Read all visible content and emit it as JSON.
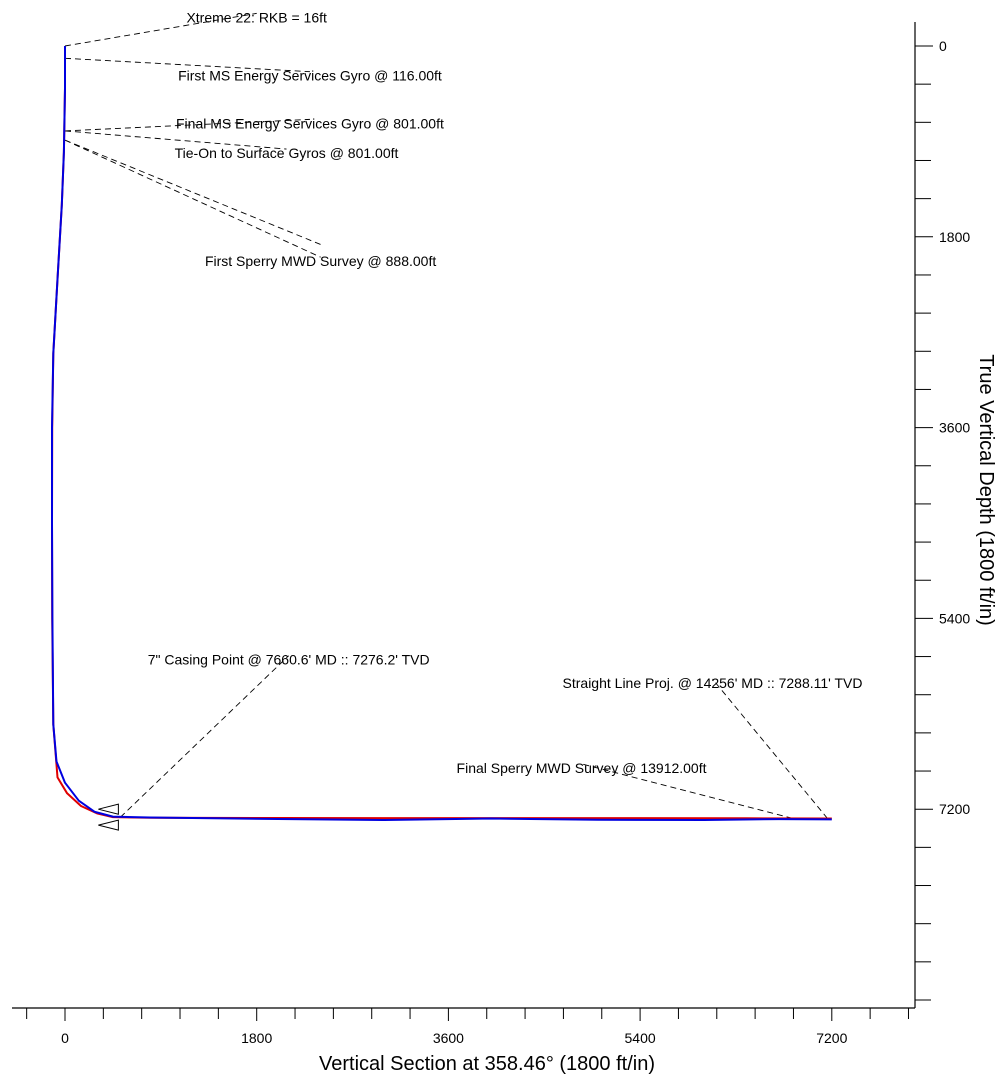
{
  "chart_data": {
    "type": "line",
    "title": "",
    "xlabel": "Vertical Section at 358.46° (1800 ft/in)",
    "ylabel": "True Vertical Depth (1800 ft/in)",
    "xlim": [
      -500,
      7960
    ],
    "ylim": [
      -400,
      9000
    ],
    "y_inverted": true,
    "x_ticks": [
      0,
      1800,
      3600,
      5400,
      7200
    ],
    "y_ticks": [
      0,
      1800,
      3600,
      5400,
      7200
    ],
    "x_tick_labels": [
      "0",
      "1800",
      "3600",
      "5400",
      "7200"
    ],
    "y_tick_labels": [
      "0",
      "1800",
      "3600",
      "5400",
      "7200"
    ],
    "x_minor_step": 360,
    "y_minor_step": 360,
    "grid": false,
    "series": [
      {
        "color": "#e00000",
        "x": [
          0,
          0,
          -10,
          -30,
          -70,
          -110,
          -120,
          -122,
          -120,
          -110,
          -70,
          20,
          150,
          300,
          450,
          800,
          2000,
          3500,
          5000,
          6400,
          7200
        ],
        "y": [
          0,
          400,
          1000,
          1500,
          2200,
          2900,
          3600,
          4500,
          5400,
          6400,
          6900,
          7050,
          7170,
          7240,
          7275,
          7280,
          7283,
          7284,
          7284,
          7286,
          7288
        ]
      },
      {
        "color": "#0000e0",
        "x": [
          0,
          0,
          -10,
          -30,
          -70,
          -110,
          -122,
          -122,
          -118,
          -110,
          -80,
          0,
          130,
          280,
          450,
          800,
          2000,
          3000,
          4000,
          5000,
          6000,
          6700,
          7200
        ],
        "y": [
          0,
          400,
          1000,
          1500,
          2200,
          2900,
          3600,
          4500,
          5400,
          6400,
          6750,
          6950,
          7120,
          7225,
          7270,
          7278,
          7292,
          7302,
          7288,
          7300,
          7302,
          7293,
          7296
        ]
      }
    ],
    "casing_markers": [
      {
        "x": 520,
        "y": 7200
      },
      {
        "x": 520,
        "y": 7350
      }
    ],
    "annotations": [
      {
        "text": "Xtreme 22:  RKB = 16ft",
        "point": [
          0,
          0
        ],
        "label_at": [
          1800,
          -270
        ]
      },
      {
        "text": "First MS Energy Services Gyro @ 116.00ft",
        "point": [
          0,
          116
        ],
        "label_at": [
          2300,
          280
        ]
      },
      {
        "text": "Final MS Energy Services Gyro @ 801.00ft",
        "point": [
          0,
          801
        ],
        "label_at": [
          2300,
          730
        ]
      },
      {
        "text": "Tie-On to Surface Gyros @ 801.00ft",
        "point": [
          0,
          801
        ],
        "label_at": [
          2080,
          1010
        ]
      },
      {
        "text": "Tie-On to Surface Gyros @ 801.00ft",
        "point": [
          0,
          888
        ],
        "label_at": [
          2400,
          1910
        ],
        "leader_only": true
      },
      {
        "text": "First Sperry MWD Survey @ 888.00ft",
        "point": [
          0,
          888
        ],
        "label_at": [
          2400,
          2030
        ]
      },
      {
        "text": "7\" Casing Point @ 7660.6' MD  ::  7276.2' TVD",
        "point": [
          520,
          7276
        ],
        "label_at": [
          2100,
          5790
        ]
      },
      {
        "text": "Straight Line Proj. @ 14256' MD  ::  7288.11' TVD",
        "point": [
          7160,
          7288
        ],
        "label_at": [
          6080,
          6010
        ]
      },
      {
        "text": "Final Sperry MWD Survey @ 13912.00ft",
        "point": [
          6830,
          7286
        ],
        "label_at": [
          4850,
          6810
        ]
      }
    ]
  }
}
